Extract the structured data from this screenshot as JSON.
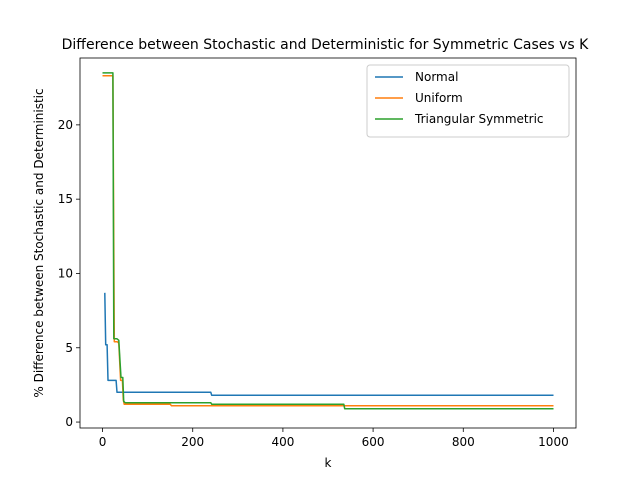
{
  "chart_data": {
    "type": "line",
    "title": "Difference between Stochastic and Deterministic for Symmetric Cases vs K",
    "xlabel": "k",
    "ylabel": "% Difference between Stochastic and Deterministic",
    "xlim": [
      -50,
      1050
    ],
    "ylim": [
      -0.4,
      24.5
    ],
    "xticks": [
      0,
      200,
      400,
      600,
      800,
      1000
    ],
    "yticks": [
      0,
      5,
      10,
      15,
      20
    ],
    "grid": false,
    "legend_position": "top-right",
    "series": [
      {
        "name": "Normal",
        "color": "#1f77b4",
        "points": [
          [
            5,
            8.7
          ],
          [
            7,
            5.2
          ],
          [
            10,
            5.2
          ],
          [
            12,
            2.8
          ],
          [
            30,
            2.8
          ],
          [
            32,
            2.0
          ],
          [
            240,
            2.0
          ],
          [
            242,
            1.8
          ],
          [
            1000,
            1.8
          ]
        ]
      },
      {
        "name": "Uniform",
        "color": "#ff7f0e",
        "points": [
          [
            0,
            23.3
          ],
          [
            23,
            23.3
          ],
          [
            26,
            5.4
          ],
          [
            33,
            5.4
          ],
          [
            36,
            5.3
          ],
          [
            40,
            2.8
          ],
          [
            44,
            2.8
          ],
          [
            46,
            1.5
          ],
          [
            48,
            1.2
          ],
          [
            150,
            1.2
          ],
          [
            153,
            1.1
          ],
          [
            1000,
            1.1
          ]
        ]
      },
      {
        "name": "Triangular Symmetric",
        "color": "#2ca02c",
        "points": [
          [
            0,
            23.5
          ],
          [
            23,
            23.5
          ],
          [
            25,
            5.6
          ],
          [
            32,
            5.6
          ],
          [
            36,
            5.5
          ],
          [
            39,
            4.0
          ],
          [
            41,
            3.0
          ],
          [
            45,
            3.0
          ],
          [
            47,
            1.4
          ],
          [
            50,
            1.3
          ],
          [
            240,
            1.3
          ],
          [
            242,
            1.2
          ],
          [
            535,
            1.2
          ],
          [
            537,
            0.9
          ],
          [
            1000,
            0.9
          ]
        ]
      }
    ]
  }
}
